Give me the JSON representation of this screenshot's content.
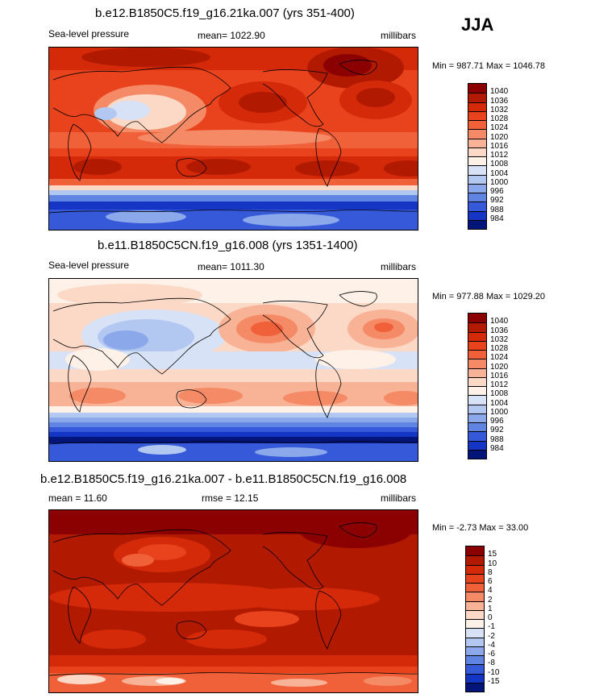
{
  "season": "JJA",
  "panels": [
    {
      "title": "b.e12.B1850C5.f19_g16.21ka.007 (yrs 351-400)",
      "left_label": "Sea-level pressure",
      "center_label": "mean= 1022.90",
      "right_label": "millibars",
      "minmax": "Min = 987.71 Max = 1046.78",
      "colorbar": {
        "labels": [
          "1040",
          "1036",
          "1032",
          "1028",
          "1024",
          "1020",
          "1016",
          "1012",
          "1008",
          "1004",
          "1000",
          "996",
          "992",
          "988",
          "984"
        ],
        "colors": [
          "#8b0000",
          "#b21a00",
          "#d42a0a",
          "#e8431c",
          "#f0613a",
          "#f58a66",
          "#f8b296",
          "#fbd9c6",
          "#fdf1e8",
          "#d7e2f7",
          "#b3c8f0",
          "#8aa8ea",
          "#5f84e2",
          "#3559d9",
          "#1535c4",
          "#04157a"
        ]
      }
    },
    {
      "title": "b.e11.B1850C5CN.f19_g16.008 (yrs 1351-1400)",
      "left_label": "Sea-level pressure",
      "center_label": "mean= 1011.30",
      "right_label": "millibars",
      "minmax": "Min = 977.88 Max = 1029.20",
      "colorbar": {
        "labels": [
          "1040",
          "1036",
          "1032",
          "1028",
          "1024",
          "1020",
          "1016",
          "1012",
          "1008",
          "1004",
          "1000",
          "996",
          "992",
          "988",
          "984"
        ],
        "colors": [
          "#8b0000",
          "#b21a00",
          "#d42a0a",
          "#e8431c",
          "#f0613a",
          "#f58a66",
          "#f8b296",
          "#fbd9c6",
          "#fdf1e8",
          "#d7e2f7",
          "#b3c8f0",
          "#8aa8ea",
          "#5f84e2",
          "#3559d9",
          "#1535c4",
          "#04157a"
        ]
      }
    },
    {
      "title": "b.e12.B1850C5.f19_g16.21ka.007 - b.e11.B1850C5CN.f19_g16.008",
      "left_label": "mean =  11.60",
      "center_label": "rmse =  12.15",
      "right_label": "millibars",
      "minmax": "Min =  -2.73 Max =  33.00",
      "colorbar": {
        "labels": [
          "15",
          "10",
          "8",
          "6",
          "4",
          "2",
          "1",
          "0",
          "-1",
          "-2",
          "-4",
          "-6",
          "-8",
          "-10",
          "-15"
        ],
        "colors": [
          "#8b0000",
          "#b21a00",
          "#d42a0a",
          "#e8431c",
          "#f0613a",
          "#f58a66",
          "#f8b296",
          "#fbd9c6",
          "#fdf1e8",
          "#d7e2f7",
          "#b3c8f0",
          "#8aa8ea",
          "#5f84e2",
          "#3559d9",
          "#1535c4",
          "#04157a"
        ]
      }
    }
  ]
}
